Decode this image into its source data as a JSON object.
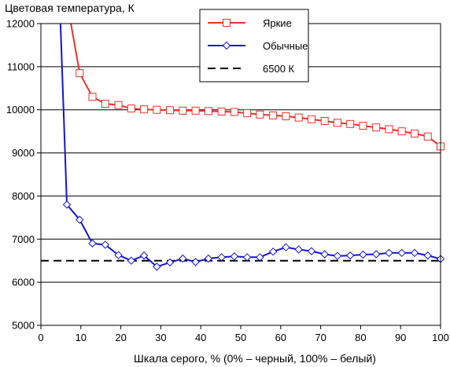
{
  "chart_data": {
    "type": "line",
    "title": "",
    "ylabel": "Цветовая температура, К",
    "xlabel": "Шкала серого, % (0% – черный, 100% – белый)",
    "xlim": [
      0,
      100
    ],
    "ylim": [
      5000,
      12000
    ],
    "xticks": [
      0,
      10,
      20,
      30,
      40,
      50,
      60,
      70,
      80,
      90,
      100
    ],
    "yticks": [
      5000,
      6000,
      7000,
      8000,
      9000,
      10000,
      11000,
      12000
    ],
    "x_tick_labels": [
      "0",
      "10",
      "20",
      "30",
      "40",
      "50",
      "60",
      "70",
      "80",
      "90",
      "100"
    ],
    "y_tick_labels": [
      "5000",
      "6000",
      "7000",
      "8000",
      "9000",
      "10000",
      "11000",
      "12000"
    ],
    "grid": "horizontal",
    "legend_position": "top-center",
    "series": [
      {
        "name": "Яркие",
        "color": "#e8322a",
        "marker": "square",
        "line_style": "solid",
        "x": [
          7.5,
          9.7,
          12.9,
          16.1,
          19.4,
          22.6,
          25.8,
          29.0,
          32.3,
          35.5,
          38.7,
          41.9,
          45.2,
          48.4,
          51.6,
          54.8,
          58.1,
          61.3,
          64.5,
          67.7,
          71.0,
          74.2,
          77.4,
          80.6,
          83.9,
          87.1,
          90.3,
          93.5,
          96.8,
          100
        ],
        "y": [
          12000,
          10850,
          10300,
          10140,
          10110,
          10030,
          10010,
          10000,
          9990,
          9980,
          9980,
          9970,
          9960,
          9950,
          9920,
          9890,
          9870,
          9850,
          9820,
          9780,
          9740,
          9700,
          9670,
          9630,
          9590,
          9550,
          9500,
          9450,
          9380,
          9150
        ]
      },
      {
        "name": "Обычные",
        "color": "#1414d4",
        "marker": "diamond",
        "line_style": "solid",
        "x": [
          4.9,
          6.5,
          9.7,
          12.9,
          16.1,
          19.4,
          22.6,
          25.8,
          29.0,
          32.3,
          35.5,
          38.7,
          41.9,
          45.2,
          48.4,
          51.6,
          54.8,
          58.1,
          61.3,
          64.5,
          67.7,
          71.0,
          74.2,
          77.4,
          80.6,
          83.9,
          87.1,
          90.3,
          93.5,
          96.8,
          100
        ],
        "y": [
          12000,
          7800,
          7450,
          6900,
          6870,
          6630,
          6500,
          6620,
          6360,
          6460,
          6550,
          6470,
          6550,
          6580,
          6600,
          6580,
          6580,
          6710,
          6810,
          6760,
          6720,
          6650,
          6610,
          6620,
          6640,
          6650,
          6680,
          6680,
          6680,
          6620,
          6540
        ]
      },
      {
        "name": "6500 К",
        "color": "#000000",
        "marker": "none",
        "line_style": "dashed",
        "x": [
          0,
          100
        ],
        "y": [
          6500,
          6500
        ]
      }
    ]
  }
}
